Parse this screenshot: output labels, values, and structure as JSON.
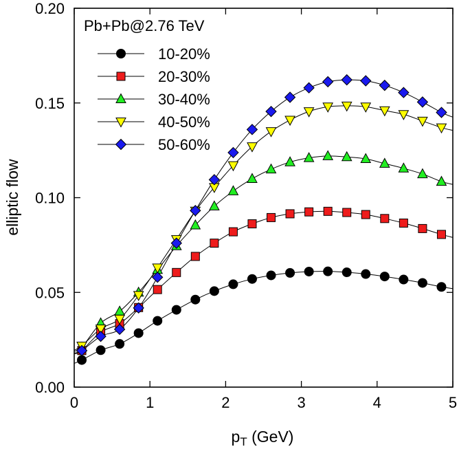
{
  "chart_data": {
    "type": "line",
    "title": "",
    "annotation": "Pb+Pb@2.76 TeV",
    "xlabel_main": "p",
    "xlabel_sub": "T",
    "xlabel_unit": " (GeV)",
    "ylabel": "elliptic flow",
    "xlim": [
      0,
      5
    ],
    "ylim": [
      0,
      0.2
    ],
    "xticks": [
      {
        "value": 0,
        "label": "0"
      },
      {
        "value": 1,
        "label": "1"
      },
      {
        "value": 2,
        "label": "2"
      },
      {
        "value": 3,
        "label": "3"
      },
      {
        "value": 4,
        "label": "4"
      },
      {
        "value": 5,
        "label": "5"
      }
    ],
    "yticks": [
      {
        "value": 0,
        "label": "0.00"
      },
      {
        "value": 0.05,
        "label": "0.05"
      },
      {
        "value": 0.1,
        "label": "0.10"
      },
      {
        "value": 0.15,
        "label": "0.15"
      },
      {
        "value": 0.2,
        "label": "0.20"
      }
    ],
    "grid": false,
    "legend_position": "top-left",
    "x": [
      0.1,
      0.35,
      0.6,
      0.85,
      1.1,
      1.35,
      1.6,
      1.85,
      2.1,
      2.35,
      2.6,
      2.85,
      3.1,
      3.35,
      3.6,
      3.85,
      4.1,
      4.35,
      4.6,
      4.85
    ],
    "series": [
      {
        "name": "10-20%",
        "marker": "circle",
        "color": "#000000",
        "values": [
          0.0143,
          0.0195,
          0.0228,
          0.0285,
          0.035,
          0.0408,
          0.0462,
          0.0507,
          0.0543,
          0.0571,
          0.059,
          0.0603,
          0.061,
          0.0611,
          0.0606,
          0.0597,
          0.0584,
          0.0568,
          0.055,
          0.0529
        ],
        "curve": [
          [
            0.0,
            0.0125
          ],
          [
            5.0,
            0.052
          ]
        ]
      },
      {
        "name": "20-30%",
        "marker": "square",
        "color": "#ee1c1c",
        "values": [
          0.0193,
          0.029,
          0.0335,
          0.042,
          0.0515,
          0.0605,
          0.069,
          0.076,
          0.082,
          0.0862,
          0.0895,
          0.0915,
          0.0925,
          0.0928,
          0.0922,
          0.0911,
          0.089,
          0.0866,
          0.0837,
          0.0806
        ],
        "curve": [
          [
            0.0,
            0.0175
          ],
          [
            5.0,
            0.079
          ]
        ]
      },
      {
        "name": "30-40%",
        "marker": "triangle-up",
        "color": "#22ee22",
        "values": [
          0.021,
          0.0338,
          0.04,
          0.05,
          0.062,
          0.0745,
          0.0855,
          0.0955,
          0.1035,
          0.11,
          0.115,
          0.1188,
          0.121,
          0.122,
          0.1215,
          0.1205,
          0.118,
          0.1155,
          0.1125,
          0.1085
        ],
        "curve": [
          [
            0.0,
            0.019
          ],
          [
            5.0,
            0.107
          ]
        ]
      },
      {
        "name": "40-50%",
        "marker": "triangle-down",
        "color": "#ffff00",
        "values": [
          0.0218,
          0.0308,
          0.036,
          0.0485,
          0.063,
          0.078,
          0.093,
          0.1055,
          0.117,
          0.127,
          0.135,
          0.141,
          0.1455,
          0.148,
          0.1485,
          0.148,
          0.146,
          0.144,
          0.1405,
          0.137
        ],
        "curve": [
          [
            0.0,
            0.0195
          ],
          [
            5.0,
            0.1355
          ]
        ]
      },
      {
        "name": "50-60%",
        "marker": "diamond",
        "color": "#1a1aee",
        "values": [
          0.0193,
          0.0268,
          0.0305,
          0.0418,
          0.058,
          0.076,
          0.0932,
          0.1095,
          0.1238,
          0.136,
          0.1455,
          0.153,
          0.158,
          0.1612,
          0.1622,
          0.1617,
          0.1593,
          0.1555,
          0.1505,
          0.145
        ],
        "curve": [
          [
            0.0,
            0.018
          ],
          [
            5.0,
            0.1425
          ]
        ]
      }
    ]
  }
}
